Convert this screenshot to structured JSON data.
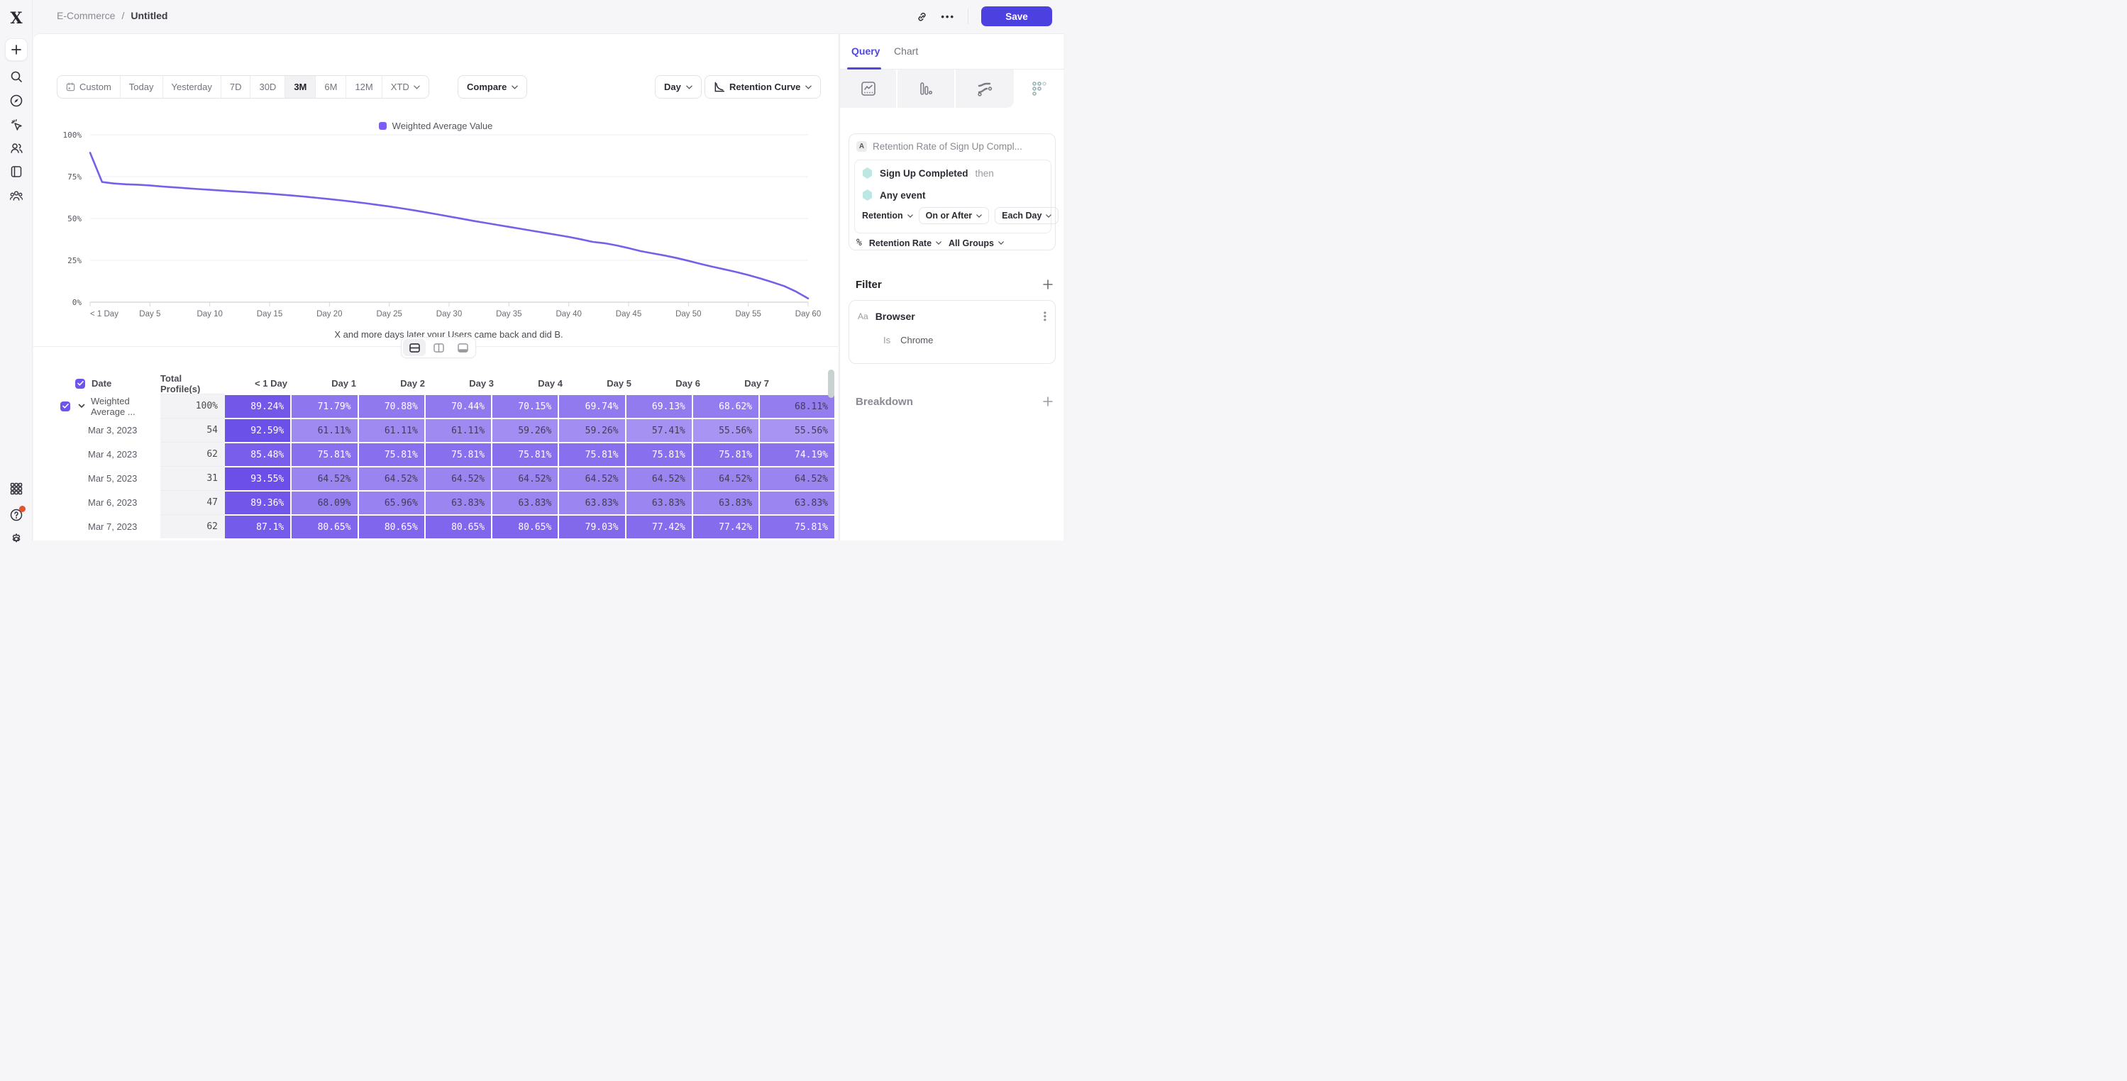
{
  "app": {
    "logo_glyph": "X"
  },
  "breadcrumb": {
    "workspace": "E-Commerce",
    "separator": "/",
    "page": "Untitled"
  },
  "topbar": {
    "save_label": "Save",
    "more_label": "•••"
  },
  "toolbar": {
    "ranges": [
      "Custom",
      "Today",
      "Yesterday",
      "7D",
      "30D",
      "3M",
      "6M",
      "12M",
      "XTD"
    ],
    "active_range": "3M",
    "compare_label": "Compare",
    "granularity_label": "Day",
    "chart_type_label": "Retention Curve"
  },
  "legend": {
    "series_label": "Weighted Average Value"
  },
  "chart_data": {
    "type": "line",
    "title": "",
    "xlabel": "X and more days later your Users came back and did B.",
    "ylabel": "",
    "ylim": [
      0,
      100
    ],
    "yticks": [
      0,
      25,
      50,
      75,
      100
    ],
    "ytick_suffix": "%",
    "x_tick_labels": [
      "< 1 Day",
      "Day 5",
      "Day 10",
      "Day 15",
      "Day 20",
      "Day 25",
      "Day 30",
      "Day 35",
      "Day 40",
      "Day 45",
      "Day 50",
      "Day 55",
      "Day 60"
    ],
    "x_tick_positions": [
      0,
      5,
      10,
      15,
      20,
      25,
      30,
      35,
      40,
      45,
      50,
      55,
      60
    ],
    "grid": true,
    "legend_position": "top-center",
    "series": [
      {
        "name": "Weighted Average Value",
        "x": [
          0,
          1,
          2,
          3,
          4,
          5,
          6,
          7,
          8,
          9,
          10,
          11,
          12,
          13,
          14,
          15,
          16,
          17,
          18,
          19,
          20,
          21,
          22,
          23,
          24,
          25,
          26,
          27,
          28,
          29,
          30,
          31,
          32,
          33,
          34,
          35,
          36,
          37,
          38,
          39,
          40,
          41,
          42,
          43,
          44,
          45,
          46,
          47,
          48,
          49,
          50,
          51,
          52,
          53,
          54,
          55,
          56,
          57,
          58,
          59,
          60
        ],
        "values": [
          89.24,
          71.79,
          70.88,
          70.44,
          70.15,
          69.74,
          69.13,
          68.62,
          68.11,
          67.6,
          67.1,
          66.65,
          66.2,
          65.75,
          65.3,
          64.8,
          64.25,
          63.65,
          63.0,
          62.3,
          61.55,
          60.8,
          60.0,
          59.1,
          58.15,
          57.15,
          56.1,
          54.95,
          53.75,
          52.5,
          51.2,
          49.9,
          48.6,
          47.4,
          46.2,
          45.0,
          43.8,
          42.6,
          41.4,
          40.2,
          39.0,
          37.6,
          36.0,
          35.2,
          33.9,
          32.3,
          30.5,
          29.2,
          27.9,
          26.4,
          24.7,
          22.9,
          21.2,
          19.6,
          18.0,
          16.2,
          14.2,
          12.0,
          9.6,
          6.3,
          2.2
        ]
      }
    ]
  },
  "view_toggles": {
    "options": [
      "split-horizontal",
      "split-vertical",
      "collapsed-bottom"
    ],
    "active": "split-horizontal"
  },
  "table": {
    "headers": [
      "Date",
      "Total Profile(s)",
      "< 1 Day",
      "Day 1",
      "Day 2",
      "Day 3",
      "Day 4",
      "Day 5",
      "Day 6",
      "Day 7"
    ],
    "rows": [
      {
        "label": "Weighted Average ...",
        "is_summary": true,
        "checked": true,
        "total": "100%",
        "cells": [
          "89.24%",
          "71.79%",
          "70.88%",
          "70.44%",
          "70.15%",
          "69.74%",
          "69.13%",
          "68.62%",
          "68.11%"
        ]
      },
      {
        "label": "Mar 3, 2023",
        "is_summary": false,
        "total": "54",
        "cells": [
          "92.59%",
          "61.11%",
          "61.11%",
          "61.11%",
          "59.26%",
          "59.26%",
          "57.41%",
          "55.56%",
          "55.56%"
        ]
      },
      {
        "label": "Mar 4, 2023",
        "is_summary": false,
        "total": "62",
        "cells": [
          "85.48%",
          "75.81%",
          "75.81%",
          "75.81%",
          "75.81%",
          "75.81%",
          "75.81%",
          "75.81%",
          "74.19%"
        ]
      },
      {
        "label": "Mar 5, 2023",
        "is_summary": false,
        "total": "31",
        "cells": [
          "93.55%",
          "64.52%",
          "64.52%",
          "64.52%",
          "64.52%",
          "64.52%",
          "64.52%",
          "64.52%",
          "64.52%"
        ]
      },
      {
        "label": "Mar 6, 2023",
        "is_summary": false,
        "total": "47",
        "cells": [
          "89.36%",
          "68.09%",
          "65.96%",
          "63.83%",
          "63.83%",
          "63.83%",
          "63.83%",
          "63.83%",
          "63.83%"
        ]
      },
      {
        "label": "Mar 7, 2023",
        "is_summary": false,
        "total": "62",
        "cells": [
          "87.1%",
          "80.65%",
          "80.65%",
          "80.65%",
          "80.65%",
          "79.03%",
          "77.42%",
          "77.42%",
          "75.81%"
        ]
      }
    ]
  },
  "panel": {
    "tabs": {
      "query": "Query",
      "chart": "Chart"
    },
    "chart_type_tabs": [
      "line-chart",
      "bar-chart",
      "flow-chart",
      "retention-grid"
    ],
    "active_chart_type_tab": "retention-grid",
    "query": {
      "series_badge": "A",
      "title": "Retention Rate of Sign Up Compl...",
      "event_a": "Sign Up Completed",
      "event_a_suffix": "then",
      "event_b": "Any event",
      "mode_label": "Retention",
      "window_label": "On or After",
      "interval_label": "Each Day",
      "measure_symbol": "%",
      "measure_label": "Retention Rate",
      "groups_label": "All Groups"
    },
    "filter": {
      "heading": "Filter",
      "property_type": "Aa",
      "property": "Browser",
      "operator": "Is",
      "value": "Chrome"
    },
    "breakdown": {
      "heading": "Breakdown"
    }
  },
  "colors": {
    "accent": "#4c40e0",
    "line": "#7560e8",
    "legend_swatch": "#7c5ff2",
    "cell_low": "#ab97f3",
    "cell_high": "#6a4ee8",
    "cell_text_dark": "#3f3f51",
    "checkbox": "#6f54ec",
    "hexagon": "#bce7e2"
  }
}
